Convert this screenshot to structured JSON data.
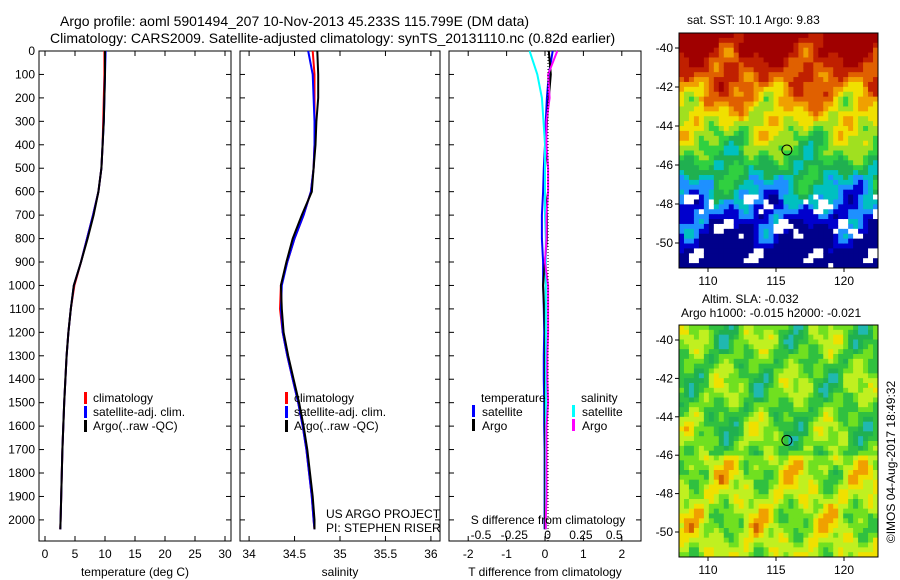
{
  "header": {
    "title_line1": "Argo profile: aoml 5901494_207 10-Nov-2013 45.233S 115.799E (DM data)",
    "title_line2": "Climatology: CARS2009. Satellite-adjusted climatology: synTS_20131110.nc (0.82d earlier)"
  },
  "colors": {
    "climatology": "#ff0000",
    "satellite": "#0000ff",
    "argo": "#000000",
    "s_satellite": "#00ffff",
    "s_argo": "#ff00ff"
  },
  "chart_data": [
    {
      "type": "line",
      "name": "temperature-profile",
      "xlabel": "temperature (deg C)",
      "xlim": [
        -1,
        31
      ],
      "xticks": [
        0,
        5,
        10,
        15,
        20,
        25,
        30
      ],
      "ylim": [
        0,
        2050
      ],
      "yticks": [
        0,
        100,
        200,
        300,
        400,
        500,
        600,
        700,
        800,
        900,
        1000,
        1100,
        1200,
        1300,
        1400,
        1500,
        1600,
        1700,
        1800,
        1900,
        2000
      ],
      "depth": [
        0,
        100,
        200,
        300,
        400,
        500,
        600,
        700,
        800,
        900,
        1000,
        1100,
        1200,
        1300,
        1400,
        1500,
        1600,
        1700,
        1800,
        1900,
        2000,
        2040
      ],
      "series": [
        {
          "name": "climatology",
          "color": "#ff0000",
          "values": [
            9.9,
            9.9,
            9.8,
            9.7,
            9.6,
            9.4,
            8.9,
            8.0,
            7.0,
            6.0,
            4.9,
            4.3,
            3.9,
            3.6,
            3.4,
            3.2,
            3.05,
            2.9,
            2.8,
            2.7,
            2.6,
            2.55
          ]
        },
        {
          "name": "satellite-adj. clim.",
          "color": "#0000ff",
          "values": [
            10.1,
            10.0,
            9.9,
            9.8,
            9.6,
            9.4,
            8.9,
            8.0,
            7.0,
            6.0,
            4.8,
            4.3,
            3.9,
            3.6,
            3.4,
            3.2,
            3.05,
            2.9,
            2.8,
            2.7,
            2.6,
            2.55
          ]
        },
        {
          "name": "Argo(..raw -QC)",
          "color": "#000000",
          "values": [
            10.0,
            10.0,
            9.9,
            9.8,
            9.6,
            9.4,
            8.9,
            8.1,
            7.1,
            6.0,
            4.8,
            4.3,
            3.9,
            3.6,
            3.4,
            3.2,
            3.05,
            2.9,
            2.8,
            2.7,
            2.6,
            2.55
          ]
        }
      ]
    },
    {
      "type": "line",
      "name": "salinity-profile",
      "xlabel": "salinity",
      "xlim": [
        33.9,
        36.1
      ],
      "xticks": [
        34,
        34.5,
        35,
        35.5,
        36
      ],
      "ylim": [
        0,
        2050
      ],
      "depth": [
        0,
        100,
        200,
        300,
        400,
        500,
        600,
        700,
        800,
        900,
        1000,
        1100,
        1200,
        1300,
        1400,
        1500,
        1600,
        1700,
        1800,
        1900,
        2000,
        2040
      ],
      "series": [
        {
          "name": "climatology",
          "color": "#ff0000",
          "values": [
            34.7,
            34.72,
            34.72,
            34.72,
            34.72,
            34.71,
            34.68,
            34.6,
            34.5,
            34.42,
            34.35,
            34.34,
            34.37,
            34.42,
            34.48,
            34.54,
            34.59,
            34.63,
            34.66,
            34.69,
            34.71,
            34.72
          ]
        },
        {
          "name": "satellite-adj. clim.",
          "color": "#0000ff",
          "values": [
            34.65,
            34.7,
            34.71,
            34.72,
            34.72,
            34.71,
            34.68,
            34.6,
            34.5,
            34.42,
            34.36,
            34.35,
            34.37,
            34.42,
            34.48,
            34.54,
            34.59,
            34.63,
            34.66,
            34.69,
            34.71,
            34.72
          ]
        },
        {
          "name": "Argo(..raw -QC)",
          "color": "#000000",
          "values": [
            34.75,
            34.76,
            34.76,
            34.74,
            34.73,
            34.71,
            34.69,
            34.58,
            34.48,
            34.41,
            34.35,
            34.36,
            34.38,
            34.43,
            34.49,
            34.55,
            34.6,
            34.64,
            34.67,
            34.7,
            34.72,
            34.72
          ]
        }
      ]
    },
    {
      "type": "line",
      "name": "difference-profile",
      "xlabel": "T difference from climatology",
      "x2label": "S difference from climatology",
      "xlim": [
        -2.5,
        2.5
      ],
      "xticks": [
        -2,
        -1,
        0,
        1,
        2
      ],
      "x2ticks": [
        "-0.5",
        "-0.25",
        "0",
        "0.25",
        "0.5"
      ],
      "ylim": [
        0,
        2050
      ],
      "depth": [
        0,
        100,
        200,
        300,
        400,
        500,
        600,
        700,
        800,
        900,
        1000,
        1100,
        1200,
        1300,
        1400,
        1500,
        1600,
        1700,
        1800,
        1900,
        2000,
        2040
      ],
      "legend": {
        "t_heading": "temperature",
        "s_heading": "salinity",
        "satellite": "satellite",
        "argo": "Argo"
      },
      "series": [
        {
          "name": "T satellite",
          "color": "#0000ff",
          "values": [
            0.2,
            0.1,
            0.05,
            0.02,
            0.0,
            -0.03,
            -0.05,
            -0.08,
            -0.08,
            -0.05,
            -0.05,
            -0.03,
            -0.02,
            -0.03,
            -0.03,
            -0.02,
            -0.02,
            -0.01,
            -0.01,
            -0.01,
            -0.01,
            -0.01
          ]
        },
        {
          "name": "T Argo",
          "color": "#000000",
          "values": [
            0.1,
            0.15,
            0.1,
            0.05,
            0.03,
            0.0,
            0.0,
            0.05,
            0.05,
            0.0,
            -0.05,
            -0.02,
            0.0,
            0.0,
            0.0,
            0.0,
            0.0,
            0.0,
            0.0,
            0.0,
            0.0,
            0.0
          ]
        },
        {
          "name": "S satellite",
          "color": "#00ffff",
          "values": [
            -0.1,
            -0.05,
            -0.02,
            -0.01,
            0.0,
            0.0,
            0.0,
            0.0,
            0.005,
            0.005,
            0.005,
            0.005,
            0.005,
            0.005,
            0.005,
            0.005,
            0.005,
            0.005,
            0.005,
            0.005,
            0.005,
            0.005
          ]
        },
        {
          "name": "S Argo",
          "color": "#ff00ff",
          "values": [
            0.08,
            0.02,
            0.03,
            0.01,
            0.01,
            0.02,
            0.02,
            0.01,
            0.01,
            0.0,
            0.02,
            0.02,
            0.02,
            0.015,
            0.015,
            0.02,
            0.01,
            0.01,
            0.01,
            0.01,
            0.005,
            0.005
          ]
        }
      ]
    }
  ],
  "credits": {
    "line1": "US ARGO PROJECT",
    "line2": "PI: STEPHEN RISER"
  },
  "map_sst": {
    "title": "sat. SST: 10.1 Argo: 9.83",
    "lon_ticks": [
      110,
      115,
      120
    ],
    "lat_ticks": [
      -40,
      -42,
      -44,
      -46,
      -48,
      -50
    ],
    "float_lon": 115.8,
    "float_lat": -45.23
  },
  "map_sla": {
    "title_line1": "Altim. SLA: -0.032",
    "title_line2": "Argo h1000: -0.015 h2000: -0.021",
    "lon_ticks": [
      110,
      115,
      120
    ],
    "lat_ticks": [
      -40,
      -42,
      -44,
      -46,
      -48,
      -50
    ],
    "float_lon": 115.8,
    "float_lat": -45.23
  },
  "stamp": "©IMOS 04-Aug-2017 18:49:32"
}
